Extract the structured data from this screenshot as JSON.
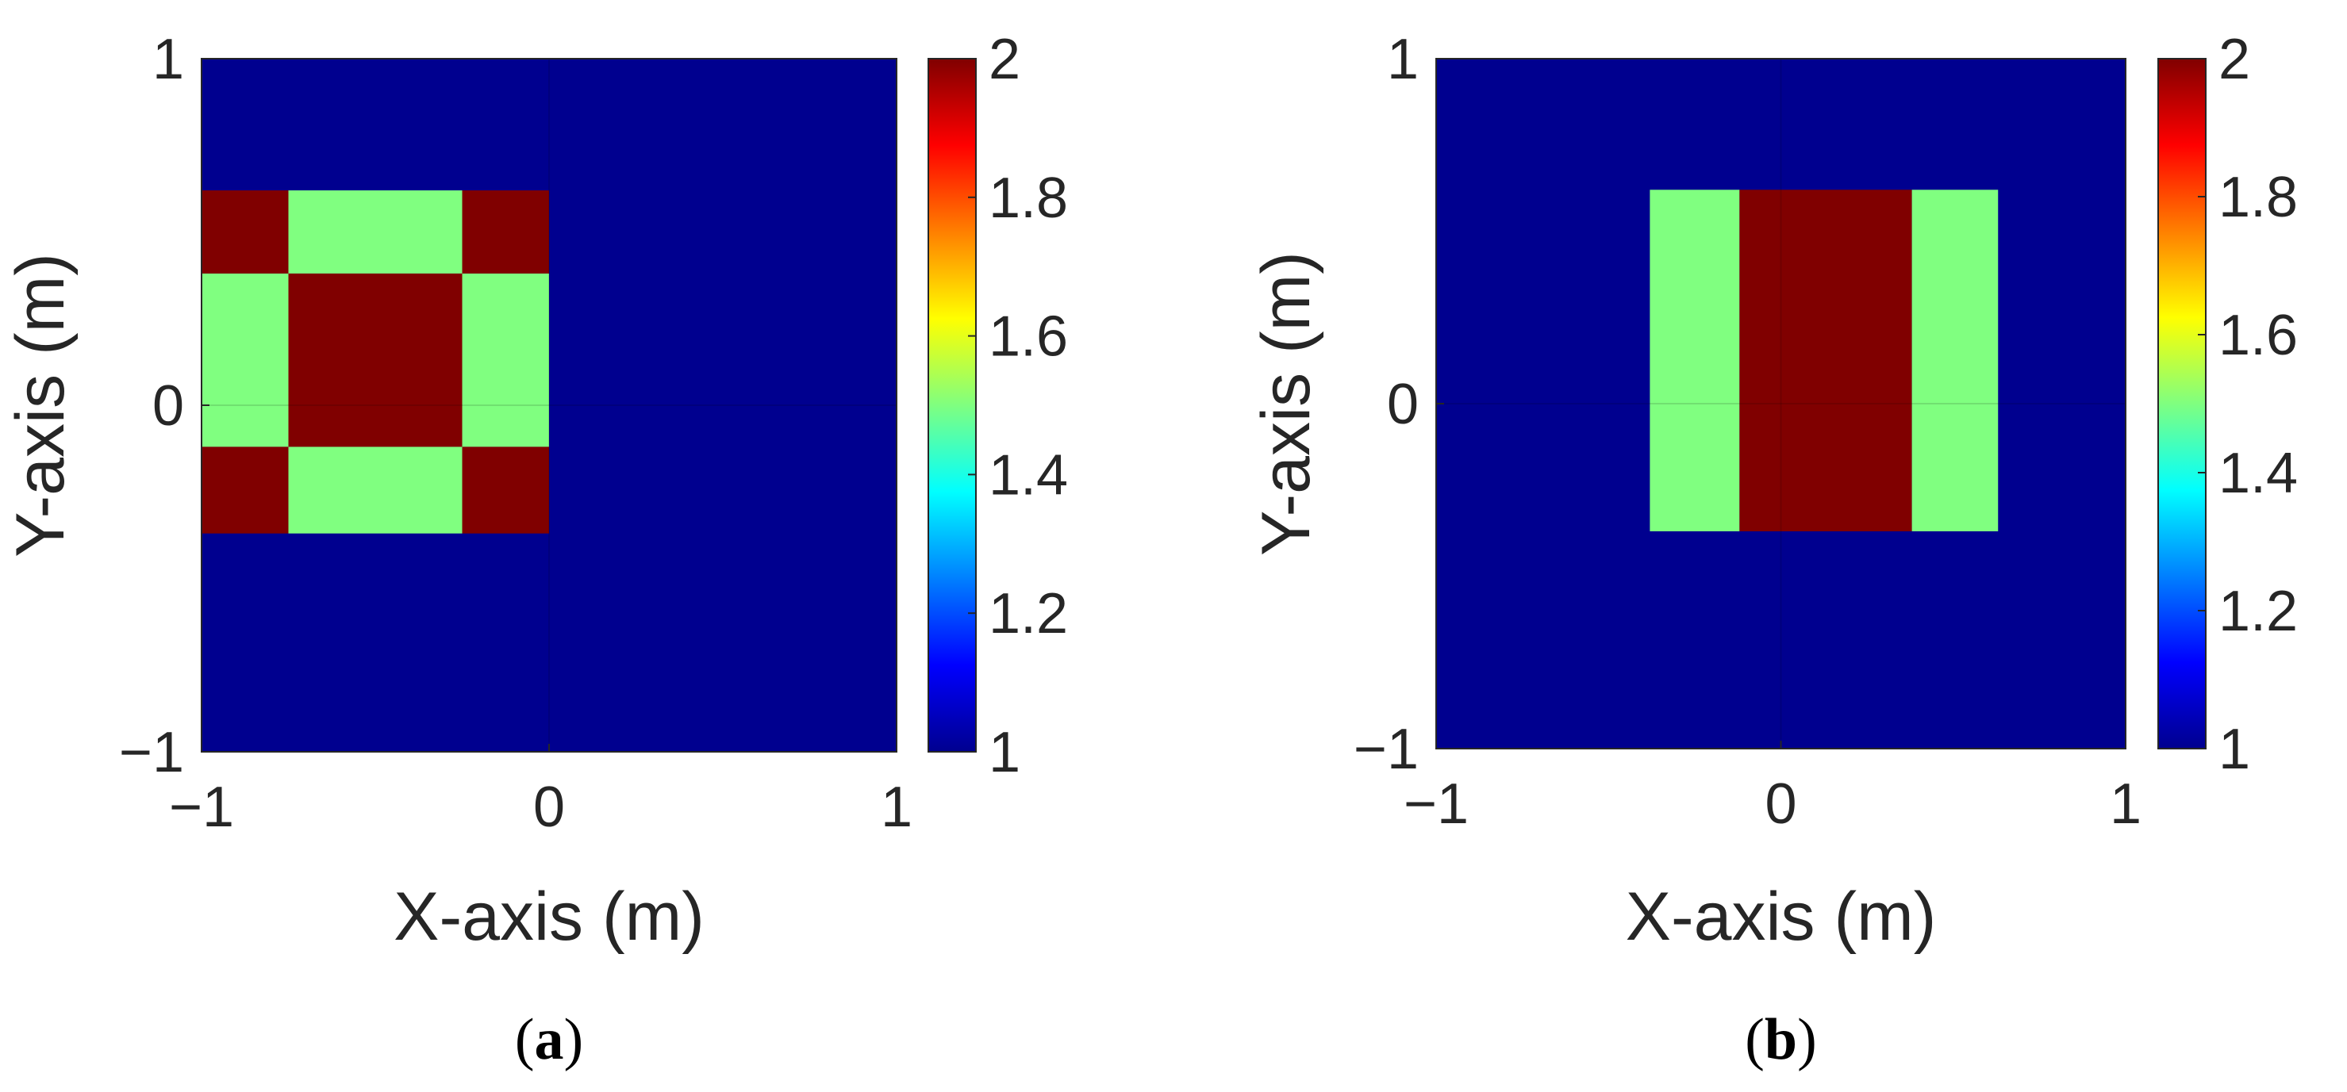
{
  "chart_data": [
    {
      "type": "heatmap",
      "caption_letter": "a",
      "xlabel": "X-axis (m)",
      "ylabel": "Y-axis (m)",
      "xlim": [
        -1,
        1
      ],
      "ylim": [
        -1,
        1
      ],
      "xticks": [
        -1,
        0,
        1
      ],
      "yticks": [
        -1,
        0,
        1
      ],
      "xtick_labels": [
        "−1",
        "0",
        "1"
      ],
      "ytick_labels": [
        "−1",
        "0",
        "1"
      ],
      "background_value": 1,
      "colormap": "jet",
      "clim": [
        1,
        2
      ],
      "colorbar_ticks": [
        1,
        1.2,
        1.4,
        1.6,
        1.8,
        2
      ],
      "colorbar_labels": [
        "1",
        "1.2",
        "1.4",
        "1.6",
        "1.8",
        "2"
      ],
      "colors": {
        "1": "#00008f",
        "1.5": "#80ff80",
        "2": "#800000"
      },
      "cells": [
        {
          "x0": -1.0,
          "x1": -0.75,
          "y0": 0.38,
          "y1": 0.62,
          "value": 2
        },
        {
          "x0": -0.75,
          "x1": -0.25,
          "y0": 0.38,
          "y1": 0.62,
          "value": 1.5
        },
        {
          "x0": -0.25,
          "x1": 0.0,
          "y0": 0.38,
          "y1": 0.62,
          "value": 2
        },
        {
          "x0": -1.0,
          "x1": -0.75,
          "y0": -0.12,
          "y1": 0.38,
          "value": 1.5
        },
        {
          "x0": -0.75,
          "x1": -0.25,
          "y0": -0.12,
          "y1": 0.38,
          "value": 2
        },
        {
          "x0": -0.25,
          "x1": 0.0,
          "y0": -0.12,
          "y1": 0.38,
          "value": 1.5
        },
        {
          "x0": -1.0,
          "x1": -0.75,
          "y0": -0.37,
          "y1": -0.12,
          "value": 2
        },
        {
          "x0": -0.75,
          "x1": -0.25,
          "y0": -0.37,
          "y1": -0.12,
          "value": 1.5
        },
        {
          "x0": -0.25,
          "x1": 0.0,
          "y0": -0.37,
          "y1": -0.12,
          "value": 2
        }
      ]
    },
    {
      "type": "heatmap",
      "caption_letter": "b",
      "xlabel": "X-axis (m)",
      "ylabel": "Y-axis (m)",
      "xlim": [
        -1,
        1
      ],
      "ylim": [
        -1,
        1
      ],
      "xticks": [
        -1,
        0,
        1
      ],
      "yticks": [
        -1,
        0,
        1
      ],
      "xtick_labels": [
        "−1",
        "0",
        "1"
      ],
      "ytick_labels": [
        "−1",
        "0",
        "1"
      ],
      "background_value": 1,
      "colormap": "jet",
      "clim": [
        1,
        2
      ],
      "colorbar_ticks": [
        1,
        1.2,
        1.4,
        1.6,
        1.8,
        2
      ],
      "colorbar_labels": [
        "1",
        "1.2",
        "1.4",
        "1.6",
        "1.8",
        "2"
      ],
      "colors": {
        "1": "#00008f",
        "1.5": "#80ff80",
        "2": "#800000"
      },
      "cells": [
        {
          "x0": -0.38,
          "x1": -0.12,
          "y0": -0.37,
          "y1": 0.62,
          "value": 1.5
        },
        {
          "x0": -0.12,
          "x1": 0.38,
          "y0": -0.37,
          "y1": 0.62,
          "value": 2
        },
        {
          "x0": 0.38,
          "x1": 0.63,
          "y0": -0.37,
          "y1": 0.62,
          "value": 1.5
        }
      ]
    }
  ]
}
